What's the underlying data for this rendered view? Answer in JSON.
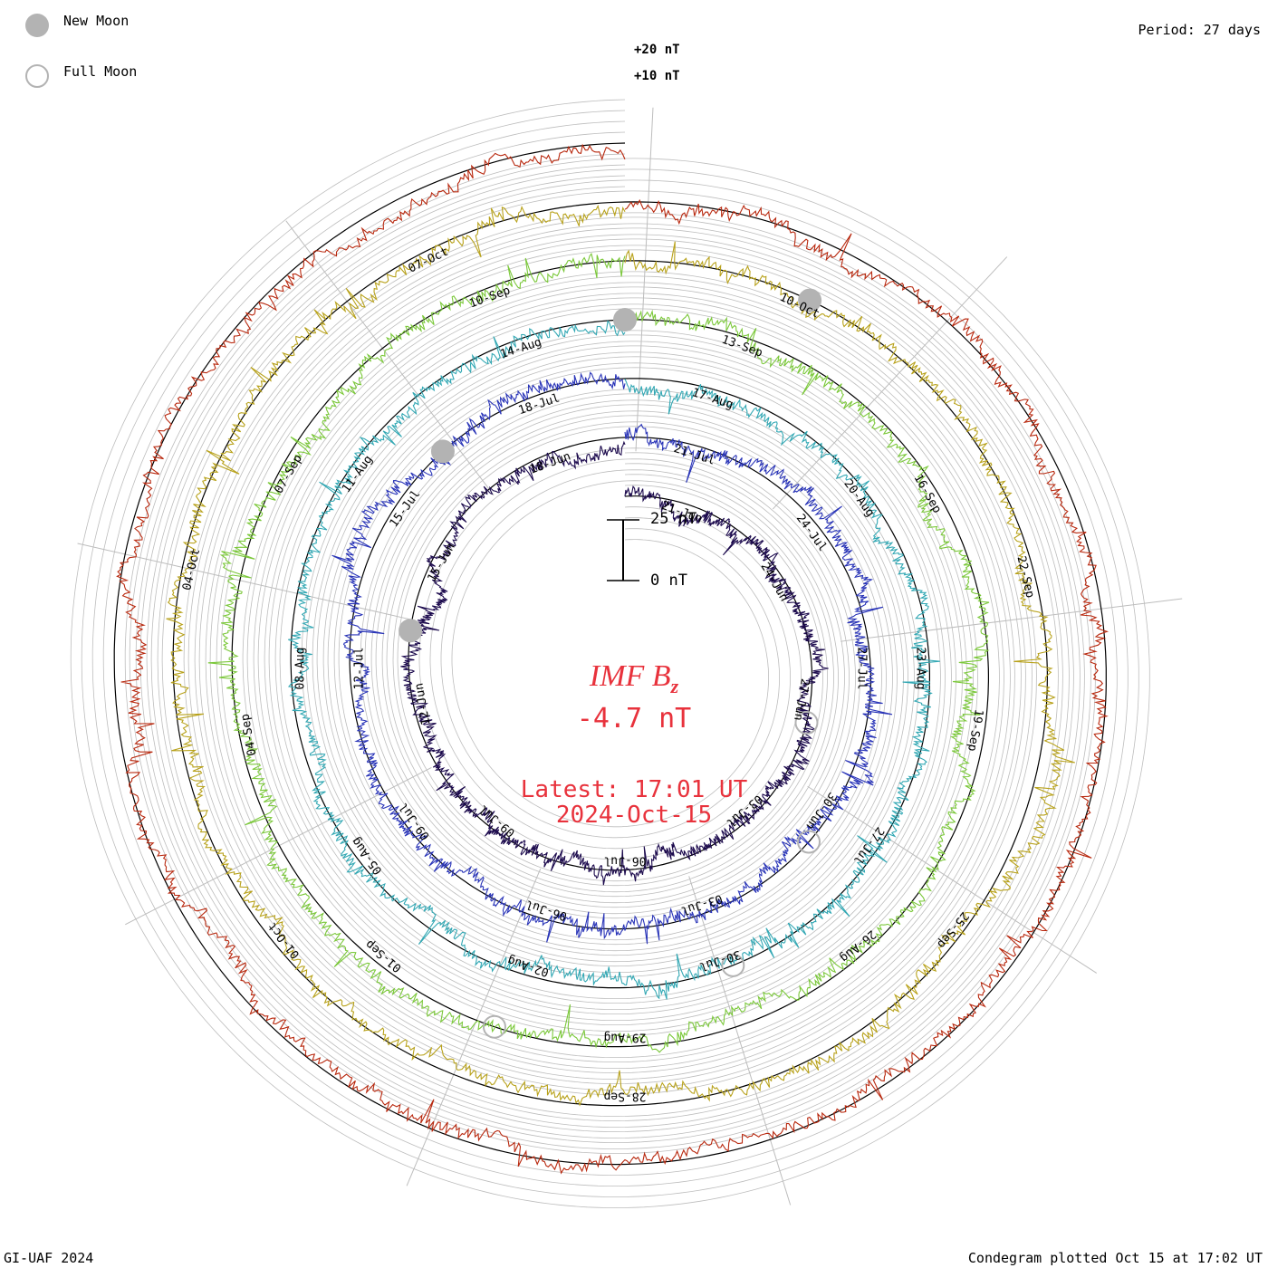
{
  "legend": {
    "new_moon_label": "New Moon",
    "full_moon_label": "Full Moon"
  },
  "header": {
    "period_label": "Period: 27 days"
  },
  "center": {
    "quantity_label": "IMF B",
    "quantity_subscript": "z",
    "current_value": "-4.7 nT",
    "latest_label": "Latest: 17:01 UT",
    "latest_date": "2024-Oct-15",
    "scale_top_label": "25 nT",
    "scale_bottom_label": "0 nT"
  },
  "footer": {
    "credit": "GI-UAF 2024",
    "plotted_label": "Condegram plotted Oct 15 at 17:02 UT"
  },
  "colors": {
    "text_red": "#e8323c",
    "moon_gray": "#b3b3b3",
    "grid_gray": "#bdbdbd"
  },
  "chart_data": {
    "type": "line",
    "subtype": "condegram-spiral",
    "period_days": 27,
    "rotation_count": 6,
    "ring_scale_labels": [
      "+20 nT",
      "+10 nT"
    ],
    "grid_line_values_nT": [
      -20,
      -15,
      -10,
      -5,
      0,
      5,
      10,
      15,
      20
    ],
    "series": [
      {
        "color": "#1c0a4d",
        "date_labels": [
          "21-Jun",
          "24-Jun",
          "27-Jun",
          "03-Jul",
          "06-Jul",
          "09-Jul",
          "12-Jun",
          "15-Jun",
          "18-Jun"
        ]
      },
      {
        "color": "#2a35b8",
        "date_labels": [
          "21-Jul",
          "24-Jul",
          "27-Jul",
          "30-Jun",
          "03-Jul",
          "06-Jul",
          "09-Jul",
          "12-Jul",
          "15-Jul",
          "18-Jul"
        ]
      },
      {
        "color": "#33a8b4",
        "date_labels": [
          "17-Aug",
          "20-Aug",
          "23-Aug",
          "27-Jul",
          "30-Jul",
          "02-Aug",
          "05-Aug",
          "08-Aug",
          "11-Aug",
          "14-Aug"
        ]
      },
      {
        "color": "#7bc83a",
        "date_labels": [
          "13-Sep",
          "16-Sep",
          "19-Sep",
          "26-Aug",
          "29-Aug",
          "01-Sep",
          "04-Sep",
          "07-Sep",
          "10-Sep"
        ]
      },
      {
        "color": "#b8a21c",
        "date_labels": [
          "10-Oct",
          "22-Sep",
          "25-Sep",
          "28-Sep",
          "01-Oct",
          "04-Oct",
          "07-Oct"
        ]
      },
      {
        "color": "#b8280e",
        "date_labels": []
      }
    ],
    "moon_phases": {
      "new_moon_dates": [
        "2024-07-05",
        "2024-08-04",
        "2024-09-03",
        "2024-10-02"
      ],
      "full_moon_dates": [
        "2024-06-22",
        "2024-07-21",
        "2024-08-19",
        "2024-09-18"
      ]
    },
    "latest": {
      "time": "17:01 UT",
      "date": "2024-Oct-15",
      "value_nT": -4.7
    }
  }
}
